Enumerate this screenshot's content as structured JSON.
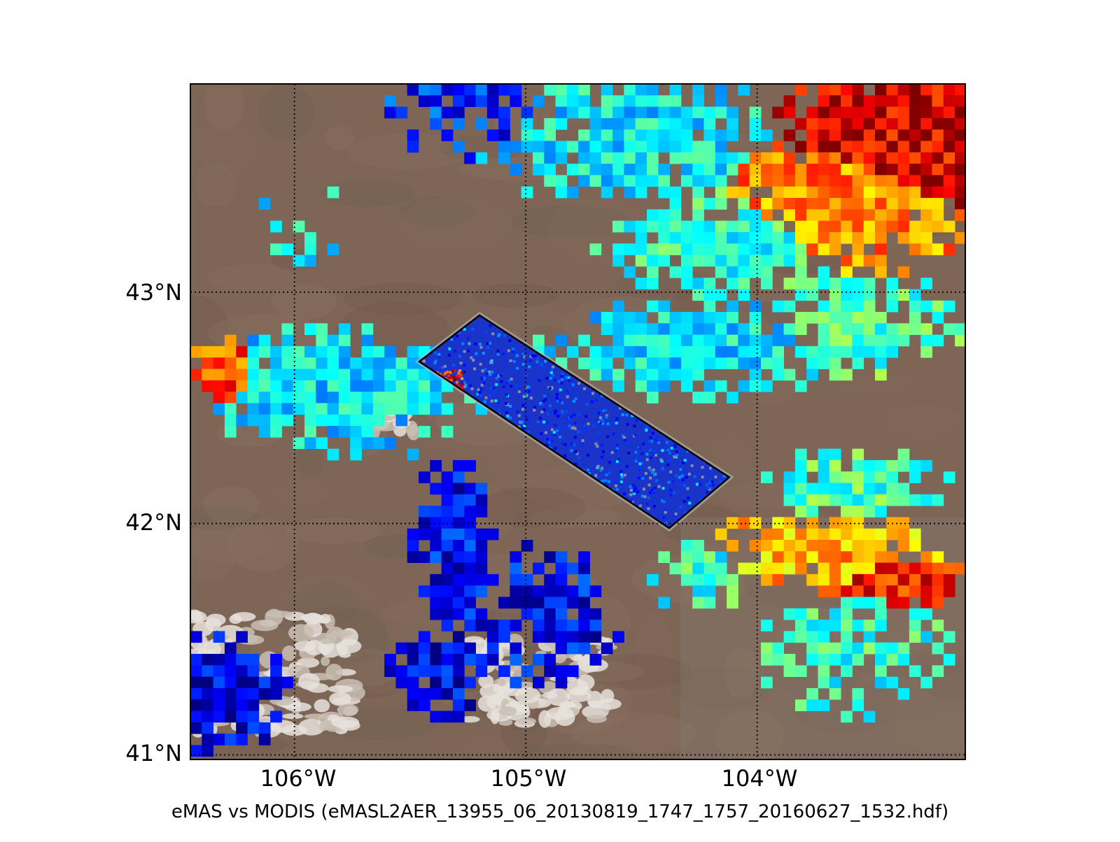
{
  "map": {
    "title": "",
    "caption": "eMAS vs MODIS (eMASL2AER_13955_06_20130819_1747_1757_20160627_1532.hdf)",
    "lon_range": [
      -106.45,
      -103.1
    ],
    "lat_range": [
      40.98,
      43.9
    ],
    "x_ticks": [
      {
        "value": -106,
        "label": "106°W"
      },
      {
        "value": -105,
        "label": "105°W"
      },
      {
        "value": -104,
        "label": "104°W"
      }
    ],
    "y_ticks": [
      {
        "value": 43,
        "label": "43°N"
      },
      {
        "value": 42,
        "label": "42°N"
      },
      {
        "value": 41,
        "label": "41°N"
      }
    ],
    "gridlines": "dotted",
    "swath_corners_lonlat": [
      [
        -105.46,
        42.7
      ],
      [
        -105.2,
        42.9
      ],
      [
        -104.12,
        42.2
      ],
      [
        -104.38,
        41.98
      ]
    ],
    "colormap": "jet",
    "colors": {
      "land": "#7d6656",
      "cloud": "#d9d2cc",
      "grid": "#000000"
    }
  }
}
